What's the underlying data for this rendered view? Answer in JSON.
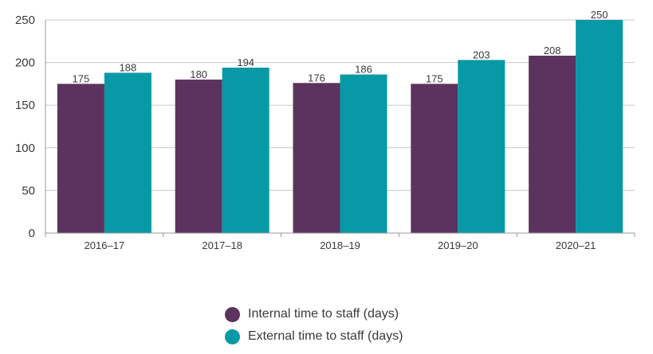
{
  "chart_data": {
    "type": "bar",
    "categories": [
      "2016–17",
      "2017–18",
      "2018–19",
      "2019–20",
      "2020–21"
    ],
    "series": [
      {
        "name": "Internal time to staff (days)",
        "color": "#5b335e",
        "values": [
          175,
          180,
          176,
          175,
          208
        ]
      },
      {
        "name": "External time to staff (days)",
        "color": "#0899a6",
        "values": [
          188,
          194,
          186,
          203,
          250
        ]
      }
    ],
    "yticks": [
      0,
      50,
      100,
      150,
      200,
      250
    ],
    "ylim": [
      0,
      250
    ],
    "grid": true,
    "legend_position": "bottom-center"
  }
}
